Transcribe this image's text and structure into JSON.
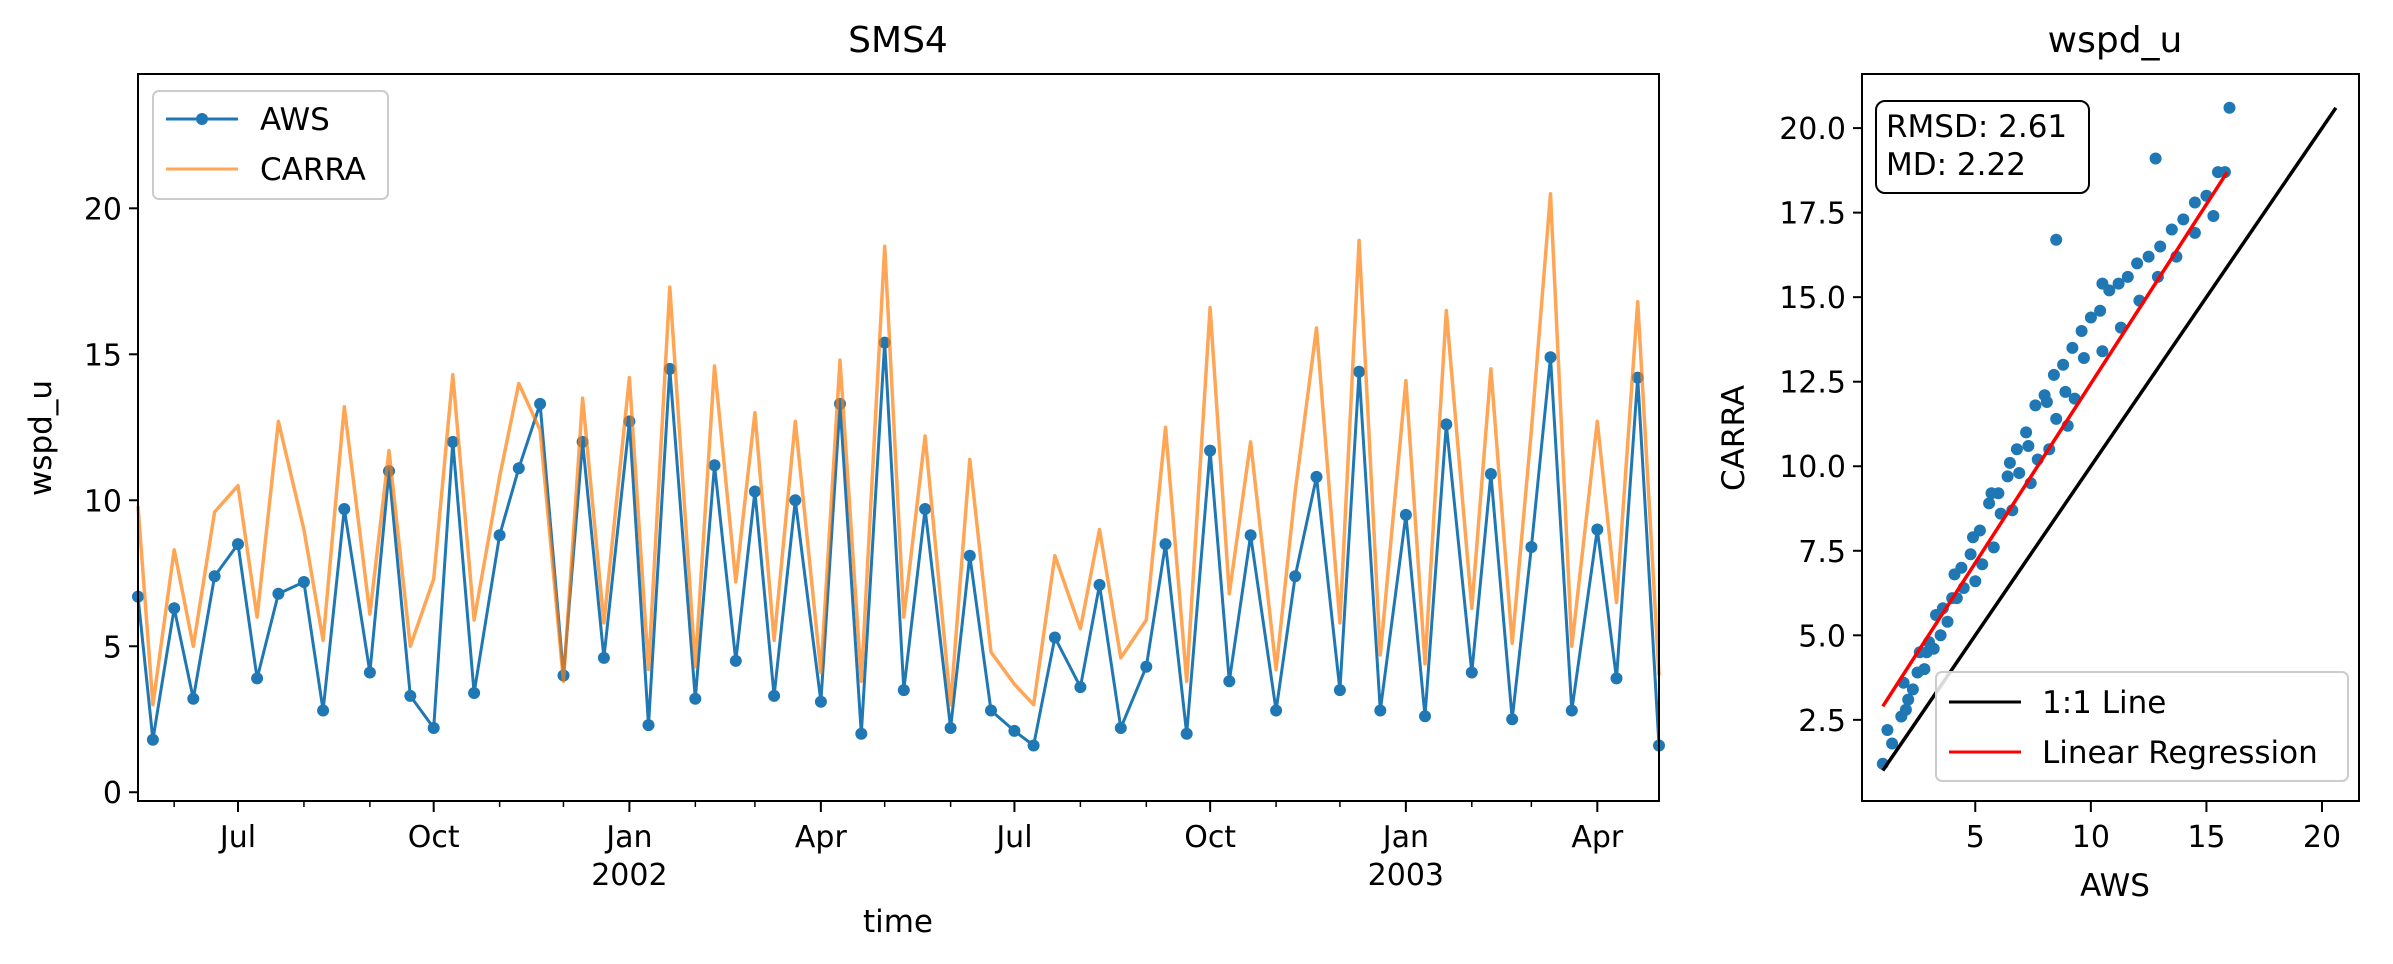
{
  "chart_data": [
    {
      "type": "line",
      "title": "SMS4",
      "xlabel": "time",
      "ylabel": "wspd_u",
      "xlim": [
        "2001-05-15",
        "2003-04-30"
      ],
      "ylim": [
        -0.3,
        24.6
      ],
      "yticks": [
        0,
        5,
        10,
        15,
        20
      ],
      "xticks": [
        {
          "date": "2001-07-01",
          "label": "Jul",
          "year": ""
        },
        {
          "date": "2001-10-01",
          "label": "Oct",
          "year": ""
        },
        {
          "date": "2002-01-01",
          "label": "Jan",
          "year": "2002"
        },
        {
          "date": "2002-04-01",
          "label": "Apr",
          "year": ""
        },
        {
          "date": "2002-07-01",
          "label": "Jul",
          "year": ""
        },
        {
          "date": "2002-10-01",
          "label": "Oct",
          "year": ""
        },
        {
          "date": "2003-01-01",
          "label": "Jan",
          "year": "2003"
        },
        {
          "date": "2003-04-01",
          "label": "Apr",
          "year": ""
        }
      ],
      "legend": "top-left",
      "grid": false,
      "series": [
        {
          "name": "AWS",
          "color": "#1f77b4",
          "marker": "circle",
          "x": [
            "2001-05-15",
            "2001-05-22",
            "2001-06-01",
            "2001-06-10",
            "2001-06-20",
            "2001-07-01",
            "2001-07-10",
            "2001-07-20",
            "2001-08-01",
            "2001-08-10",
            "2001-08-20",
            "2001-09-01",
            "2001-09-10",
            "2001-09-20",
            "2001-10-01",
            "2001-10-10",
            "2001-10-20",
            "2001-11-01",
            "2001-11-10",
            "2001-11-20",
            "2001-12-01",
            "2001-12-10",
            "2001-12-20",
            "2002-01-01",
            "2002-01-10",
            "2002-01-20",
            "2002-02-01",
            "2002-02-10",
            "2002-02-20",
            "2002-03-01",
            "2002-03-10",
            "2002-03-20",
            "2002-04-01",
            "2002-04-10",
            "2002-04-20",
            "2002-05-01",
            "2002-05-10",
            "2002-05-20",
            "2002-06-01",
            "2002-06-10",
            "2002-06-20",
            "2002-07-01",
            "2002-07-10",
            "2002-07-20",
            "2002-08-01",
            "2002-08-10",
            "2002-08-20",
            "2002-09-01",
            "2002-09-10",
            "2002-09-20",
            "2002-10-01",
            "2002-10-10",
            "2002-10-20",
            "2002-11-01",
            "2002-11-10",
            "2002-11-20",
            "2002-12-01",
            "2002-12-10",
            "2002-12-20",
            "2003-01-01",
            "2003-01-10",
            "2003-01-20",
            "2003-02-01",
            "2003-02-10",
            "2003-02-20",
            "2003-03-01",
            "2003-03-10",
            "2003-03-20",
            "2003-04-01",
            "2003-04-10",
            "2003-04-20",
            "2003-04-30"
          ],
          "values": [
            6.7,
            1.8,
            6.3,
            3.2,
            7.4,
            8.5,
            3.9,
            6.8,
            7.2,
            2.8,
            9.7,
            4.1,
            11.0,
            3.3,
            2.2,
            12.0,
            3.4,
            8.8,
            11.1,
            13.3,
            4.0,
            12.0,
            4.6,
            12.7,
            2.3,
            14.5,
            3.2,
            11.2,
            4.5,
            10.3,
            3.3,
            10.0,
            3.1,
            13.3,
            2.0,
            15.4,
            3.5,
            9.7,
            2.2,
            8.1,
            2.8,
            2.1,
            1.6,
            5.3,
            3.6,
            7.1,
            2.2,
            4.3,
            8.5,
            2.0,
            11.7,
            3.8,
            8.8,
            2.8,
            7.4,
            10.8,
            3.5,
            14.4,
            2.8,
            9.5,
            2.6,
            12.6,
            4.1,
            10.9,
            2.5,
            8.4,
            14.9,
            2.8,
            9.0,
            3.9,
            14.2,
            1.6
          ]
        },
        {
          "name": "CARRA",
          "color": "#ff7f0e",
          "opacity": 0.7,
          "x": [
            "2001-05-15",
            "2001-05-22",
            "2001-06-01",
            "2001-06-10",
            "2001-06-20",
            "2001-07-01",
            "2001-07-10",
            "2001-07-20",
            "2001-08-01",
            "2001-08-10",
            "2001-08-20",
            "2001-09-01",
            "2001-09-10",
            "2001-09-20",
            "2001-10-01",
            "2001-10-10",
            "2001-10-20",
            "2001-11-01",
            "2001-11-10",
            "2001-11-20",
            "2001-12-01",
            "2001-12-10",
            "2001-12-20",
            "2002-01-01",
            "2002-01-10",
            "2002-01-20",
            "2002-02-01",
            "2002-02-10",
            "2002-02-20",
            "2002-03-01",
            "2002-03-10",
            "2002-03-20",
            "2002-04-01",
            "2002-04-10",
            "2002-04-20",
            "2002-05-01",
            "2002-05-10",
            "2002-05-20",
            "2002-06-01",
            "2002-06-10",
            "2002-06-20",
            "2002-07-01",
            "2002-07-10",
            "2002-07-20",
            "2002-08-01",
            "2002-08-10",
            "2002-08-20",
            "2002-09-01",
            "2002-09-10",
            "2002-09-20",
            "2002-10-01",
            "2002-10-10",
            "2002-10-20",
            "2002-11-01",
            "2002-11-10",
            "2002-11-20",
            "2002-12-01",
            "2002-12-10",
            "2002-12-20",
            "2003-01-01",
            "2003-01-10",
            "2003-01-20",
            "2003-02-01",
            "2003-02-10",
            "2003-02-20",
            "2003-03-01",
            "2003-03-10",
            "2003-03-20",
            "2003-04-01",
            "2003-04-10",
            "2003-04-20",
            "2003-04-30"
          ],
          "values": [
            9.8,
            3.0,
            8.3,
            5.0,
            9.6,
            10.5,
            6.0,
            12.7,
            9.0,
            5.2,
            13.2,
            6.1,
            11.7,
            5.0,
            7.3,
            14.3,
            5.9,
            10.8,
            14.0,
            12.4,
            3.8,
            13.5,
            5.8,
            14.2,
            4.2,
            17.3,
            4.3,
            14.6,
            7.2,
            13.0,
            5.2,
            12.7,
            4.1,
            14.8,
            3.8,
            18.7,
            6.0,
            12.2,
            3.0,
            11.4,
            4.8,
            3.7,
            3.0,
            8.1,
            5.6,
            9.0,
            4.6,
            5.9,
            12.5,
            3.8,
            16.6,
            6.8,
            12.0,
            4.2,
            10.3,
            15.9,
            5.8,
            18.9,
            4.7,
            14.1,
            4.4,
            16.5,
            6.3,
            14.5,
            5.1,
            12.4,
            20.5,
            5.0,
            12.7,
            6.5,
            16.8,
            4.0
          ]
        }
      ]
    },
    {
      "type": "scatter",
      "title": "wspd_u",
      "xlabel": "AWS",
      "ylabel": "CARRA",
      "xlim": [
        0.1,
        21.6
      ],
      "ylim": [
        0.1,
        21.6
      ],
      "xticks": [
        5,
        10,
        15,
        20
      ],
      "yticks": [
        2.5,
        5.0,
        7.5,
        10.0,
        12.5,
        15.0,
        17.5,
        20.0
      ],
      "legend": "bottom-right",
      "stats": {
        "rmsd": "RMSD: 2.61",
        "md": "MD: 2.22"
      },
      "point_color": "#1f77b4",
      "points_x": [
        1.0,
        1.4,
        1.8,
        2.1,
        2.5,
        2.9,
        3.2,
        3.6,
        4.0,
        4.4,
        4.8,
        5.2,
        5.6,
        6.0,
        6.4,
        6.8,
        7.2,
        7.6,
        8.0,
        8.4,
        8.8,
        9.2,
        9.6,
        10.0,
        10.4,
        10.8,
        11.2,
        11.6,
        12.0,
        12.5,
        13.0,
        13.5,
        14.0,
        14.5,
        15.0,
        15.5,
        16.0,
        1.2,
        1.9,
        2.6,
        3.3,
        4.1,
        4.9,
        5.7,
        6.5,
        7.3,
        8.1,
        8.9,
        9.7,
        10.5,
        11.3,
        12.1,
        12.9,
        13.7,
        14.5,
        15.3,
        2.3,
        3.0,
        3.8,
        4.5,
        5.3,
        6.1,
        6.9,
        7.7,
        8.5,
        9.3,
        2.0,
        2.8,
        3.5,
        4.2,
        5.0,
        5.8,
        6.6,
        7.4,
        8.2,
        9.0,
        12.8,
        15.8,
        8.5,
        10.5
      ],
      "points_y": [
        1.2,
        1.8,
        2.6,
        3.1,
        3.9,
        4.5,
        4.6,
        5.8,
        6.1,
        7.0,
        7.4,
        8.1,
        8.9,
        9.2,
        9.7,
        10.5,
        11.0,
        11.8,
        12.1,
        12.7,
        13.0,
        13.5,
        14.0,
        14.4,
        14.6,
        15.2,
        15.4,
        15.6,
        16.0,
        16.2,
        16.5,
        17.0,
        17.3,
        17.8,
        18.0,
        18.7,
        20.6,
        2.2,
        3.6,
        4.5,
        5.6,
        6.8,
        7.9,
        9.2,
        10.1,
        10.6,
        11.9,
        12.2,
        13.2,
        13.4,
        14.1,
        14.9,
        15.6,
        16.2,
        16.9,
        17.4,
        3.4,
        4.8,
        5.4,
        6.4,
        7.1,
        8.6,
        9.8,
        10.2,
        11.4,
        12.0,
        2.8,
        4.0,
        5.0,
        6.1,
        6.6,
        7.6,
        8.7,
        9.5,
        10.5,
        11.2,
        19.1,
        18.7,
        16.7,
        15.4
      ],
      "lines": [
        {
          "name": "1:1 Line",
          "color": "#000000",
          "x": [
            1.0,
            20.6
          ],
          "y": [
            1.0,
            20.6
          ]
        },
        {
          "name": "Linear Regression",
          "color": "#ff0000",
          "x": [
            1.0,
            15.9
          ],
          "y": [
            2.9,
            18.7
          ]
        }
      ]
    }
  ]
}
